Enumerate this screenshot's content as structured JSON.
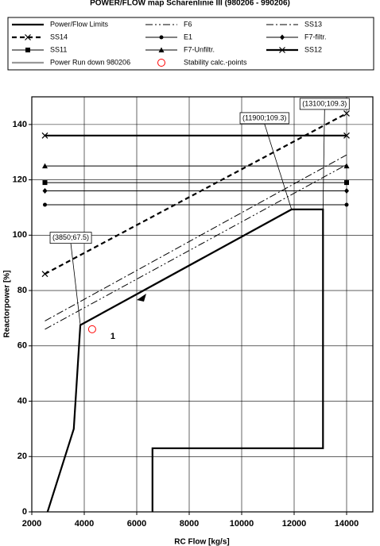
{
  "chart_data": {
    "type": "line",
    "title": "POWER/FLOW map Scharenlinie III (980206 - 990206)",
    "x_label": "RC Flow [kg/s]",
    "y_label": "Reactorpower [%]",
    "xlim": [
      2000,
      15000
    ],
    "ylim": [
      0,
      150
    ],
    "xticks": [
      2000,
      4000,
      6000,
      8000,
      10000,
      12000,
      14000
    ],
    "yticks": [
      0,
      20,
      40,
      60,
      80,
      100,
      120,
      140
    ],
    "grid": true,
    "series": [
      {
        "name": "Power/Flow Limits",
        "color": "#000000",
        "dash": "solid",
        "line": "thick",
        "marker": "none",
        "x": [
          2600,
          3600,
          3850,
          11900,
          13100,
          13100,
          6600,
          6600
        ],
        "values": [
          0,
          30,
          67.5,
          109.3,
          109.3,
          23,
          23,
          0
        ]
      },
      {
        "name": "F6",
        "color": "#000000",
        "dash": "dash-dot-dot",
        "line": "thin",
        "marker": "none",
        "x": [
          2500,
          14000
        ],
        "values": [
          66,
          125.5
        ]
      },
      {
        "name": "SS13",
        "color": "#000000",
        "dash": "dash-dot",
        "line": "thin",
        "marker": "none",
        "x": [
          2500,
          14000
        ],
        "values": [
          69,
          129
        ]
      },
      {
        "name": "SS14",
        "color": "#000000",
        "dash": "dashed",
        "line": "thick",
        "marker": "x",
        "x": [
          2500,
          14000
        ],
        "values": [
          86,
          144
        ]
      },
      {
        "name": "E1",
        "color": "#000000",
        "dash": "solid",
        "line": "thin",
        "marker": "dot",
        "x": [
          2500,
          14000
        ],
        "values": [
          111,
          111
        ]
      },
      {
        "name": "F7-filtr.",
        "color": "#000000",
        "dash": "solid",
        "line": "thin",
        "marker": "diamond",
        "x": [
          2500,
          14000
        ],
        "values": [
          116,
          116
        ]
      },
      {
        "name": "SS11",
        "color": "#000000",
        "dash": "solid",
        "line": "thin",
        "marker": "square",
        "x": [
          2500,
          14000
        ],
        "values": [
          119,
          119
        ]
      },
      {
        "name": "F7-Unfiltr.",
        "color": "#000000",
        "dash": "solid",
        "line": "thin",
        "marker": "triangle",
        "x": [
          2500,
          14000
        ],
        "values": [
          125,
          125
        ]
      },
      {
        "name": "SS12",
        "color": "#000000",
        "dash": "solid",
        "line": "thick",
        "marker": "x",
        "x": [
          2500,
          14000
        ],
        "values": [
          136,
          136
        ]
      },
      {
        "name": "Power Run down 980206",
        "color": "#999999",
        "dash": "solid",
        "line": "thick",
        "marker": "none",
        "x": [
          11900,
          3850
        ],
        "values": [
          109.3,
          67.5
        ]
      },
      {
        "name": "Stability calc.-points",
        "color": "#ff0000",
        "dash": "none",
        "line": "none",
        "marker": "circle",
        "x": [
          4300
        ],
        "values": [
          66
        ]
      }
    ],
    "annotations": [
      {
        "text": "(3850;67.5)",
        "x": 3850,
        "y": 67.5
      },
      {
        "text": "(11900;109.3)",
        "x": 11900,
        "y": 109.3
      },
      {
        "text": "(13100;109.3)",
        "x": 13100,
        "y": 109.3
      },
      {
        "text": "1",
        "x": 4300,
        "y": 66
      }
    ]
  }
}
